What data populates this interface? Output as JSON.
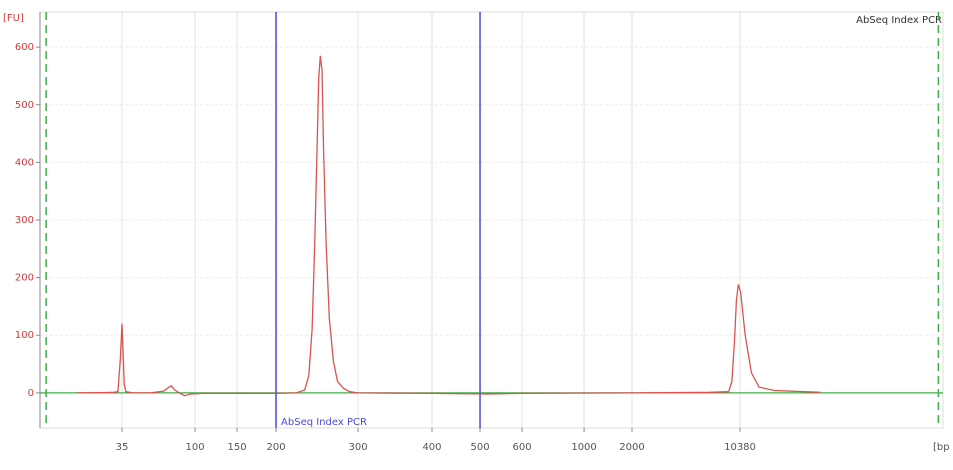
{
  "chart_data": {
    "type": "line",
    "title": "AbSeq Index PCR",
    "y_label": "[FU]",
    "x_label": "[bp",
    "x": [
      24,
      30,
      33,
      34,
      34.6,
      35,
      36,
      37,
      38.5,
      45,
      60,
      72,
      77,
      79,
      82,
      86,
      91,
      96,
      110,
      150,
      200,
      225,
      235,
      240,
      244,
      247,
      250,
      252,
      254,
      256,
      258,
      261,
      265,
      270,
      275,
      282,
      290,
      300,
      400,
      520,
      600,
      2000,
      8000,
      9500,
      9750,
      9950,
      10100,
      10250,
      10400,
      10550,
      10750,
      11000,
      11500,
      13000
    ],
    "series": [
      {
        "name": "AbSeq Index PCR",
        "color": "#d9534f",
        "values": [
          0,
          0.5,
          1,
          2,
          60,
          120,
          70,
          15,
          2,
          0,
          0,
          3,
          10,
          12,
          5,
          0,
          -5,
          -2,
          -1,
          -1,
          -1,
          0,
          5,
          30,
          110,
          250,
          420,
          545,
          585,
          560,
          420,
          260,
          130,
          55,
          20,
          8,
          2,
          0,
          -1,
          -2,
          -1,
          0,
          1,
          2,
          20,
          90,
          160,
          188,
          175,
          100,
          35,
          10,
          4,
          1
        ]
      }
    ],
    "region": {
      "label": "AbSeq Index PCR",
      "from": 200,
      "to": 500,
      "color": "#4a4adb"
    },
    "markers": {
      "values": [
        16.5,
        16850
      ],
      "color": "#3cb043"
    },
    "baseline_color": "#3cb043",
    "xlim": [
      15,
      17000
    ],
    "xticks": [
      35,
      100,
      150,
      200,
      300,
      400,
      500,
      600,
      1000,
      2000,
      10380
    ],
    "ylim": [
      -61,
      661
    ],
    "yticks": [
      0,
      100,
      200,
      300,
      400,
      500,
      600
    ],
    "grid": true
  }
}
